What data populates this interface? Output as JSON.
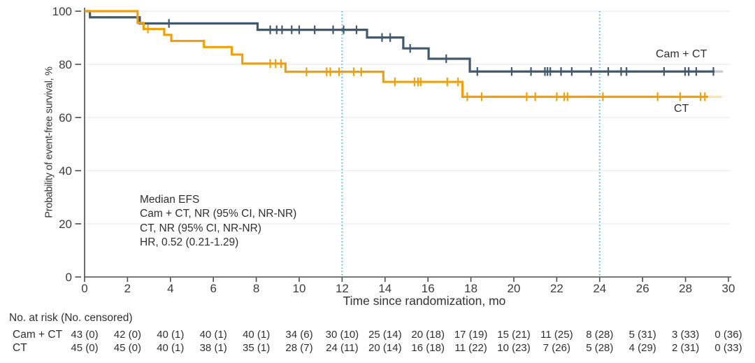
{
  "chart_data": {
    "type": "line",
    "step": true,
    "title": "",
    "xlabel": "Time since randomization, mo",
    "ylabel": "Probability of event-free survival, %",
    "xlim": [
      0,
      30
    ],
    "ylim": [
      0,
      100
    ],
    "x_ticks": [
      0,
      2,
      4,
      6,
      8,
      10,
      12,
      14,
      16,
      18,
      20,
      22,
      24,
      26,
      28,
      30
    ],
    "y_ticks": [
      0,
      20,
      40,
      60,
      80,
      100
    ],
    "grid": "horizontal-light",
    "reference_lines": {
      "x_values": [
        12,
        24
      ],
      "color": "#44B7E8",
      "style": "dotted"
    },
    "annotation_lines": [
      "Median EFS",
      "Cam + CT, NR (95% CI, NR-NR)",
      "CT, NR (95% CI, NR-NR)",
      "HR, 0.52 (0.21-1.29)"
    ],
    "series": [
      {
        "name": "Cam + CT",
        "color": "#42596B",
        "steps": [
          [
            0,
            100
          ],
          [
            0.25,
            97.7
          ],
          [
            2.57,
            95.4
          ],
          [
            8.06,
            93.0
          ],
          [
            13.16,
            90.1
          ],
          [
            14.85,
            86.0
          ],
          [
            16.03,
            82.1
          ],
          [
            17.95,
            77.3
          ]
        ],
        "last_follow_up": 29.35,
        "fade_to": 29.75,
        "censor_times": [
          3.93,
          8.65,
          8.95,
          9.2,
          9.65,
          10.0,
          10.72,
          11.58,
          12.07,
          12.67,
          13.86,
          14.24,
          15.17,
          16.85,
          18.3,
          19.9,
          20.8,
          21.45,
          21.57,
          21.7,
          22.2,
          22.7,
          23.6,
          24.4,
          25.0,
          25.25,
          27.0,
          27.98,
          28.15,
          28.5,
          29.3
        ]
      },
      {
        "name": "CT",
        "color": "#EFA00B",
        "steps": [
          [
            0,
            100
          ],
          [
            2.47,
            95.6
          ],
          [
            2.75,
            93.3
          ],
          [
            3.71,
            91.1
          ],
          [
            4.04,
            88.8
          ],
          [
            5.56,
            86.5
          ],
          [
            6.86,
            83.7
          ],
          [
            7.35,
            80.3
          ],
          [
            9.36,
            77.2
          ],
          [
            13.92,
            73.4
          ],
          [
            17.61,
            67.8
          ]
        ],
        "last_follow_up": 29.05,
        "fade_to": 29.7,
        "censor_times": [
          2.95,
          8.65,
          8.9,
          9.15,
          10.34,
          11.28,
          11.45,
          11.86,
          12.54,
          12.89,
          14.46,
          15.37,
          15.54,
          15.66,
          16.9,
          17.4,
          17.83,
          18.5,
          20.6,
          21.0,
          22.0,
          22.35,
          22.5,
          24.15,
          26.7,
          27.75,
          28.7,
          28.9
        ]
      }
    ],
    "risk_table": {
      "title": "No. at risk (No. censored)",
      "time_points": [
        0,
        2,
        4,
        6,
        8,
        10,
        12,
        14,
        16,
        18,
        20,
        22,
        24,
        26,
        28,
        30
      ],
      "rows": [
        {
          "label": "Cam + CT",
          "values": [
            "43 (0)",
            "42 (0)",
            "40 (1)",
            "40 (1)",
            "40 (1)",
            "34 (6)",
            "30 (10)",
            "25 (14)",
            "20 (18)",
            "17 (19)",
            "15 (21)",
            "11 (25)",
            "8 (28)",
            "5 (31)",
            "3 (33)",
            "0 (36)"
          ]
        },
        {
          "label": "CT",
          "values": [
            "45 (0)",
            "45 (0)",
            "40 (1)",
            "38 (1)",
            "35 (1)",
            "28 (7)",
            "24 (11)",
            "20 (14)",
            "16 (18)",
            "11 (22)",
            "10 (23)",
            "7 (26)",
            "5 (28)",
            "4 (29)",
            "2 (31)",
            "0 (33)"
          ]
        }
      ]
    }
  }
}
